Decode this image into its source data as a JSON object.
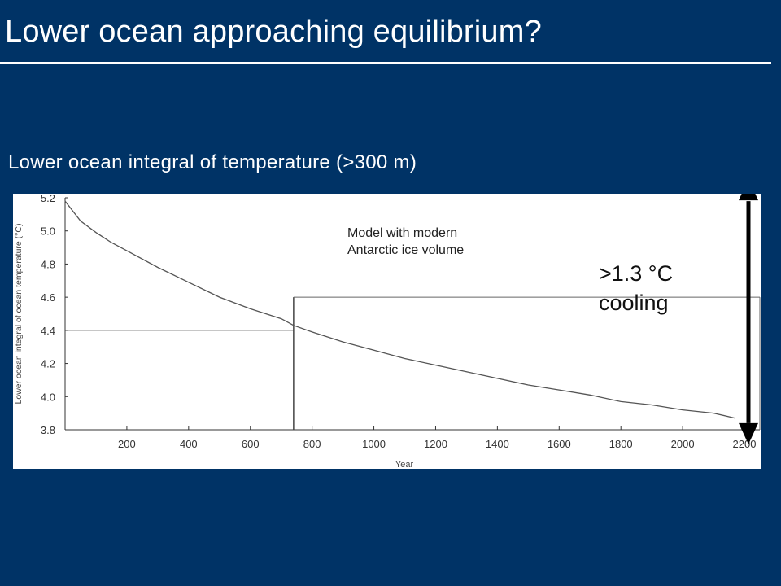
{
  "slide": {
    "title": "Lower ocean approaching equilibrium?",
    "subtitle": "Lower ocean integral of temperature (>300 m)"
  },
  "annotations": {
    "model_line1": "Model with modern",
    "model_line2": "Antarctic ice volume",
    "cooling_line1": ">1.3 °C",
    "cooling_line2": "cooling"
  },
  "colors": {
    "background": "#003366",
    "curve": "#555555",
    "arrow": "#000000"
  },
  "chart_data": {
    "type": "line",
    "xlabel": "Year",
    "ylabel": "Lower ocean integral of ocean temperature (°C)",
    "xlim": [
      0,
      2250
    ],
    "ylim": [
      3.8,
      5.2
    ],
    "x_ticks": [
      200,
      400,
      600,
      800,
      1000,
      1200,
      1400,
      1600,
      1800,
      2000,
      2200
    ],
    "y_ticks": [
      3.8,
      4.0,
      4.2,
      4.4,
      4.6,
      4.8,
      5.0,
      5.2
    ],
    "series": [
      {
        "x": [
          0,
          50,
          100,
          150,
          200,
          300,
          400,
          500,
          600,
          700,
          740,
          800,
          900,
          1000,
          1100,
          1200,
          1300,
          1400,
          1500,
          1600,
          1700,
          1800,
          1900,
          2000,
          2100,
          2170
        ],
        "y": [
          5.18,
          5.06,
          4.99,
          4.93,
          4.88,
          4.78,
          4.69,
          4.6,
          4.53,
          4.47,
          4.43,
          4.39,
          4.33,
          4.28,
          4.23,
          4.19,
          4.15,
          4.11,
          4.07,
          4.04,
          4.01,
          3.97,
          3.95,
          3.92,
          3.9,
          3.87
        ]
      }
    ],
    "reference_lines": {
      "h_y": 4.4,
      "box_x": 740,
      "box_y": 4.6
    },
    "arrow_range": [
      3.85,
      5.17
    ]
  }
}
